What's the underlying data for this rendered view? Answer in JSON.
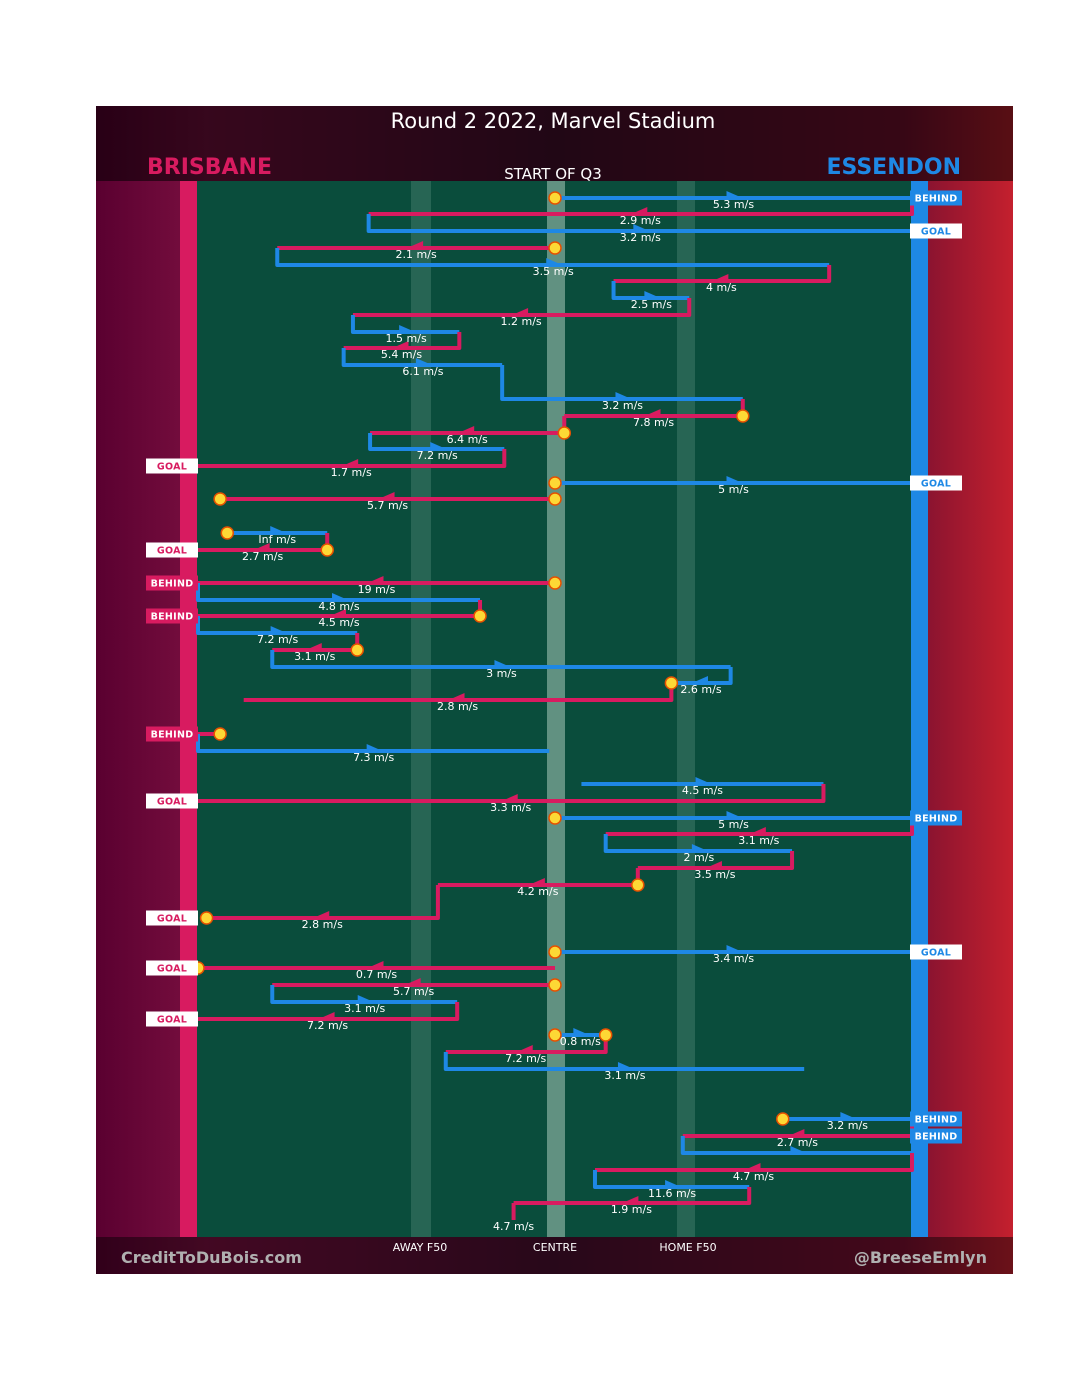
{
  "chart_data": {
    "type": "line",
    "title": "Round 2 2022, Marvel Stadium",
    "subtitle": "START OF Q3",
    "teams": {
      "left": {
        "name": "BRISBANE",
        "color": "#d81b60"
      },
      "right": {
        "name": "ESSENDON",
        "color": "#1e88e5"
      }
    },
    "x_axis_labels": [
      {
        "label": "AWAY F50",
        "x": 30
      },
      {
        "label": "CENTRE",
        "x": 50
      },
      {
        "label": "HOME F50",
        "x": 70
      }
    ],
    "credits": {
      "left": "CreditToDuBois.com",
      "right": "@BreeseEmlyn"
    },
    "x_range": [
      0,
      100
    ],
    "y_direction": "time runs top to bottom",
    "colors": {
      "brisbane": "#d81b60",
      "essendon": "#1e88e5",
      "stoppage": "#fdd835",
      "ground": "#0a4d3c",
      "ground_line": "#2e6b5a"
    },
    "chains": [
      {
        "team": "essendon",
        "from_x": 50,
        "to_x": 100,
        "speed": "5.3 m/s"
      },
      {
        "team": "brisbane",
        "from_x": 100,
        "to_x": 23.9,
        "speed": "2.9 m/s"
      },
      {
        "team": "essendon",
        "from_x": 23.9,
        "to_x": 100,
        "speed": "3.2 m/s"
      },
      {
        "team": "brisbane",
        "from_x": 50,
        "to_x": 11.1,
        "speed": "2.1 m/s"
      },
      {
        "team": "essendon",
        "from_x": 11.1,
        "to_x": 88.4,
        "speed": "3.5 m/s"
      },
      {
        "team": "brisbane",
        "from_x": 88.4,
        "to_x": 58.2,
        "speed": "4 m/s"
      },
      {
        "team": "essendon",
        "from_x": 58.2,
        "to_x": 68.8,
        "speed": "2.5 m/s"
      },
      {
        "team": "brisbane",
        "from_x": 68.8,
        "to_x": 21.7,
        "speed": "1.2 m/s"
      },
      {
        "team": "essendon",
        "from_x": 21.7,
        "to_x": 36.6,
        "speed": "1.5 m/s"
      },
      {
        "team": "brisbane",
        "from_x": 36.6,
        "to_x": 20.4,
        "speed": "5.4 m/s"
      },
      {
        "team": "essendon",
        "from_x": 20.4,
        "to_x": 42.6,
        "speed": "6.1 m/s"
      },
      {
        "team": "essendon",
        "from_x": 42.6,
        "to_x": 76.3,
        "speed": "3.2 m/s"
      },
      {
        "team": "brisbane",
        "from_x": 76.3,
        "to_x": 51.3,
        "speed": "7.8 m/s"
      },
      {
        "team": "brisbane",
        "from_x": 51.3,
        "to_x": 24.1,
        "speed": "6.4 m/s"
      },
      {
        "team": "essendon",
        "from_x": 24.1,
        "to_x": 42.9,
        "speed": "7.2 m/s"
      },
      {
        "team": "brisbane",
        "from_x": 42.9,
        "to_x": 0,
        "speed": "1.7 m/s"
      },
      {
        "team": "essendon",
        "from_x": 50,
        "to_x": 100,
        "speed": "5 m/s"
      },
      {
        "team": "brisbane",
        "from_x": 50,
        "to_x": 3.1,
        "speed": "5.7 m/s"
      },
      {
        "team": "essendon",
        "from_x": 4.1,
        "to_x": 18.1,
        "speed": "Inf m/s"
      },
      {
        "team": "brisbane",
        "from_x": 18.1,
        "to_x": 0,
        "speed": "2.7 m/s"
      },
      {
        "team": "brisbane",
        "from_x": 50,
        "to_x": 0,
        "speed": "19 m/s"
      },
      {
        "team": "essendon",
        "from_x": 0,
        "to_x": 39.5,
        "speed": "4.8 m/s"
      },
      {
        "team": "brisbane",
        "from_x": 39.5,
        "to_x": 0,
        "speed": "4.5 m/s"
      },
      {
        "team": "essendon",
        "from_x": 0,
        "to_x": 22.3,
        "speed": "7.2 m/s"
      },
      {
        "team": "brisbane",
        "from_x": 22.3,
        "to_x": 10.4,
        "speed": "3.1 m/s"
      },
      {
        "team": "essendon",
        "from_x": 10.4,
        "to_x": 74.6,
        "speed": "3 m/s"
      },
      {
        "team": "essendon",
        "from_x": 74.6,
        "to_x": 66.3,
        "speed": "2.6 m/s"
      },
      {
        "team": "brisbane",
        "from_x": 66.3,
        "to_x": 6.4,
        "speed": "2.8 m/s"
      },
      {
        "team": "brisbane",
        "from_x": 3.1,
        "to_x": 0,
        "speed": ""
      },
      {
        "team": "essendon",
        "from_x": 0,
        "to_x": 49.2,
        "speed": "7.3 m/s"
      },
      {
        "team": "essendon",
        "from_x": 53.7,
        "to_x": 87.6,
        "speed": "4.5 m/s"
      },
      {
        "team": "brisbane",
        "from_x": 87.6,
        "to_x": 0,
        "speed": "3.3 m/s"
      },
      {
        "team": "essendon",
        "from_x": 50,
        "to_x": 100,
        "speed": "5 m/s"
      },
      {
        "team": "brisbane",
        "from_x": 100,
        "to_x": 57.1,
        "speed": "3.1 m/s"
      },
      {
        "team": "essendon",
        "from_x": 57.1,
        "to_x": 83.2,
        "speed": "2 m/s"
      },
      {
        "team": "brisbane",
        "from_x": 83.2,
        "to_x": 61.6,
        "speed": "3.5 m/s"
      },
      {
        "team": "brisbane",
        "from_x": 61.6,
        "to_x": 33.6,
        "speed": "4.2 m/s"
      },
      {
        "team": "brisbane",
        "from_x": 33.6,
        "to_x": 1.2,
        "speed": "2.8 m/s"
      },
      {
        "team": "essendon",
        "from_x": 50,
        "to_x": 100,
        "speed": "3.4 m/s"
      },
      {
        "team": "brisbane",
        "from_x": 50,
        "to_x": 0,
        "speed": "0.7 m/s"
      },
      {
        "team": "brisbane",
        "from_x": 50,
        "to_x": 10.4,
        "speed": "5.7 m/s"
      },
      {
        "team": "essendon",
        "from_x": 10.4,
        "to_x": 36.3,
        "speed": "3.1 m/s"
      },
      {
        "team": "brisbane",
        "from_x": 36.3,
        "to_x": 0,
        "speed": "7.2 m/s"
      },
      {
        "team": "essendon",
        "from_x": 50,
        "to_x": 57.1,
        "speed": "0.8 m/s"
      },
      {
        "team": "brisbane",
        "from_x": 57.1,
        "to_x": 34.7,
        "speed": "7.2 m/s"
      },
      {
        "team": "essendon",
        "from_x": 34.7,
        "to_x": 84.9,
        "speed": "3.1 m/s"
      },
      {
        "team": "essendon",
        "from_x": 81.9,
        "to_x": 100,
        "speed": "3.2 m/s"
      },
      {
        "team": "brisbane",
        "from_x": 100,
        "to_x": 67.9,
        "speed": "2.7 m/s"
      },
      {
        "team": "essendon",
        "from_x": 67.9,
        "to_x": 100,
        "speed": ""
      },
      {
        "team": "brisbane",
        "from_x": 100,
        "to_x": 55.6,
        "speed": "4.7 m/s"
      },
      {
        "team": "essendon",
        "from_x": 55.6,
        "to_x": 77.2,
        "speed": "11.6 m/s"
      },
      {
        "team": "brisbane",
        "from_x": 77.2,
        "to_x": 44.2,
        "speed": "1.9 m/s"
      },
      {
        "team": "brisbane",
        "from_x": 44.2,
        "to_x": 44.2,
        "speed": "4.7 m/s"
      }
    ],
    "outcomes": [
      {
        "side": "right",
        "label": "BEHIND",
        "team": "essendon"
      },
      {
        "side": "right",
        "label": "GOAL",
        "team": "essendon"
      },
      {
        "side": "left",
        "label": "GOAL",
        "team": "brisbane"
      },
      {
        "side": "right",
        "label": "GOAL",
        "team": "essendon"
      },
      {
        "side": "left",
        "label": "GOAL",
        "team": "brisbane"
      },
      {
        "side": "left",
        "label": "BEHIND",
        "team": "brisbane"
      },
      {
        "side": "left",
        "label": "BEHIND",
        "team": "brisbane"
      },
      {
        "side": "left",
        "label": "BEHIND",
        "team": "brisbane"
      },
      {
        "side": "left",
        "label": "GOAL",
        "team": "brisbane"
      },
      {
        "side": "right",
        "label": "BEHIND",
        "team": "essendon"
      },
      {
        "side": "left",
        "label": "GOAL",
        "team": "brisbane"
      },
      {
        "side": "right",
        "label": "GOAL",
        "team": "essendon"
      },
      {
        "side": "left",
        "label": "GOAL",
        "team": "brisbane"
      },
      {
        "side": "left",
        "label": "GOAL",
        "team": "brisbane"
      },
      {
        "side": "right",
        "label": "BEHIND",
        "team": "essendon"
      },
      {
        "side": "right",
        "label": "BEHIND",
        "team": "essendon"
      }
    ]
  }
}
